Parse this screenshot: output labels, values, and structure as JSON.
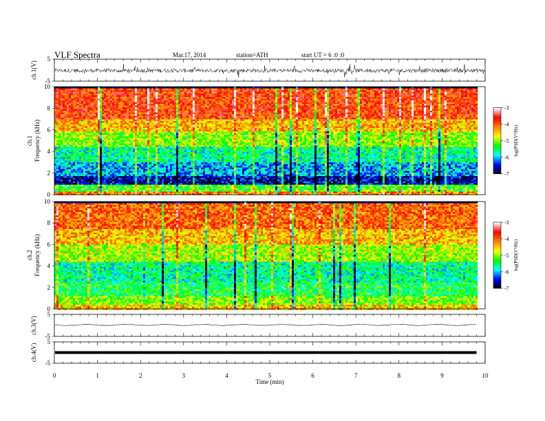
{
  "header": {
    "title": "VLF  Spectra",
    "date": "Mar.17, 2014",
    "station": "station=ATH",
    "start": "start  UT  =   6  :0  :0"
  },
  "chart_data": [
    {
      "type": "line",
      "name": "ch1-waveform",
      "ylabel": "ch.1(V)",
      "ylim": [
        -5,
        5
      ],
      "y_ticks": [
        "5",
        "-5"
      ],
      "baseline": 0,
      "noise_band": [
        -1.2,
        0.8
      ],
      "xlim": [
        0,
        10
      ]
    },
    {
      "type": "heatmap",
      "name": "ch1-spectrogram",
      "ylabel_top": "ch.1",
      "ylabel": "Frequency  (kHz)",
      "ylim": [
        0,
        10
      ],
      "y_ticks": [
        "0",
        "2",
        "4",
        "6",
        "8",
        "10"
      ],
      "xlim": [
        0,
        9.8
      ],
      "colorbar": {
        "label": "log(PSD(V²/Hz)",
        "range": [
          -7,
          -3
        ],
        "ticks": [
          "-3",
          "-4",
          "-5",
          "-6",
          "-7"
        ]
      },
      "bands_khz_to_logpsd": [
        [
          0,
          0.4,
          -4.2
        ],
        [
          0.4,
          1.0,
          -5.2
        ],
        [
          1.0,
          1.8,
          -6.6
        ],
        [
          1.8,
          3.0,
          -6.0
        ],
        [
          3.0,
          4.5,
          -5.6
        ],
        [
          4.5,
          6.0,
          -5.0
        ],
        [
          6.0,
          7.0,
          -4.4
        ],
        [
          7.0,
          10.0,
          -3.8
        ]
      ]
    },
    {
      "type": "heatmap",
      "name": "ch2-spectrogram",
      "ylabel_top": "ch.2",
      "ylabel": "Frequency  (kHz)",
      "ylim": [
        0,
        10
      ],
      "y_ticks": [
        "0",
        "2",
        "4",
        "6",
        "8",
        "10"
      ],
      "xlim": [
        0,
        9.8
      ],
      "colorbar": {
        "label": "log(PSD(V²/Hz)",
        "range": [
          -7,
          -3
        ],
        "ticks": [
          "-3",
          "-4",
          "-5",
          "-6",
          "-7"
        ]
      },
      "bands_khz_to_logpsd": [
        [
          0,
          0.4,
          -4.5
        ],
        [
          0.4,
          1.2,
          -5.0
        ],
        [
          1.2,
          2.5,
          -5.4
        ],
        [
          2.5,
          4.5,
          -5.6
        ],
        [
          4.5,
          6.0,
          -4.9
        ],
        [
          6.0,
          7.5,
          -4.4
        ],
        [
          7.5,
          10.0,
          -4.0
        ]
      ]
    },
    {
      "type": "line",
      "name": "ch3-waveform",
      "ylabel": "ch.3(V)",
      "ylim": [
        -5,
        5
      ],
      "y_ticks": [
        "5",
        "-5"
      ],
      "baseline": 0.2,
      "xlim": [
        0,
        9.8
      ]
    },
    {
      "type": "line",
      "name": "ch4-waveform",
      "ylabel": "ch.4(V)",
      "ylim": [
        -5,
        5
      ],
      "y_ticks": [
        "5",
        "-5"
      ],
      "baseline": 0,
      "xlim": [
        0,
        9.8
      ]
    }
  ],
  "x_axis": {
    "label": "Time  (min)",
    "ticks": [
      "0",
      "1",
      "2",
      "3",
      "4",
      "5",
      "6",
      "7",
      "8",
      "9",
      "10"
    ],
    "range": [
      0,
      10
    ]
  },
  "colorscale": [
    "#000000",
    "#0000ff",
    "#00ffff",
    "#00ff00",
    "#ffff00",
    "#ff8000",
    "#ff0000",
    "#ffffff"
  ]
}
